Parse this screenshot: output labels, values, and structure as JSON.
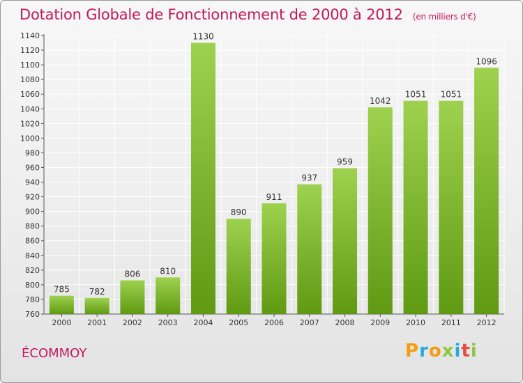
{
  "title": "Dotation Globale de Fonctionnement de 2000 à 2012",
  "unit": "(en milliers d'€)",
  "commune": "ÉCOMMOY",
  "logo": {
    "letters": [
      "P",
      "r",
      "o",
      "x",
      "i",
      "t",
      "i"
    ],
    "colors": [
      "#f39c12",
      "#27aae1",
      "#f39c12",
      "#8cc63f",
      "#27aae1",
      "#e74c3c",
      "#8cc63f"
    ]
  },
  "colors": {
    "bar_light": "#9ed14f",
    "bar_dark": "#5f9a12",
    "title": "#c2185b",
    "grid": "#ffffff"
  },
  "chart_data": {
    "type": "bar",
    "title": "Dotation Globale de Fonctionnement de 2000 à 2012",
    "xlabel": "",
    "ylabel": "",
    "categories": [
      "2000",
      "2001",
      "2002",
      "2003",
      "2004",
      "2005",
      "2006",
      "2007",
      "2008",
      "2009",
      "2010",
      "2011",
      "2012"
    ],
    "values": [
      785,
      782,
      806,
      810,
      1130,
      890,
      911,
      937,
      959,
      1042,
      1051,
      1051,
      1096
    ],
    "ylim": [
      760,
      1140
    ],
    "yticks": [
      760,
      780,
      800,
      820,
      840,
      860,
      880,
      900,
      920,
      940,
      960,
      980,
      1000,
      1020,
      1040,
      1060,
      1080,
      1100,
      1120,
      1140
    ],
    "grid": true,
    "legend": "none"
  }
}
